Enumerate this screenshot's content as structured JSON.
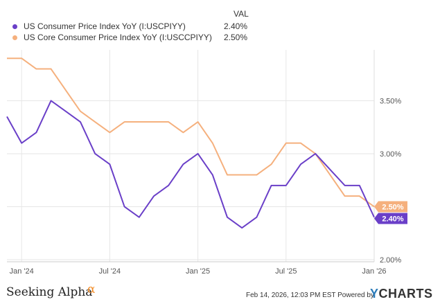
{
  "legend": {
    "val_header": "VAL",
    "items": [
      {
        "name": "US Consumer Price Index YoY (I:USCPIYY)",
        "value": "2.40%",
        "color": "#6a3fc8"
      },
      {
        "name": "US Core Consumer Price Index YoY (I:USCCPIYY)",
        "value": "2.50%",
        "color": "#f5b07d"
      }
    ]
  },
  "chart_data": {
    "type": "line",
    "x": [
      "2023-12",
      "2024-01",
      "2024-02",
      "2024-03",
      "2024-04",
      "2024-05",
      "2024-06",
      "2024-07",
      "2024-08",
      "2024-09",
      "2024-10",
      "2024-11",
      "2024-12",
      "2025-01",
      "2025-02",
      "2025-03",
      "2025-04",
      "2025-05",
      "2025-06",
      "2025-07",
      "2025-08",
      "2025-09",
      "2025-10",
      "2025-11",
      "2025-12",
      "2026-01"
    ],
    "series": [
      {
        "name": "US Consumer Price Index YoY (I:USCPIYY)",
        "color": "#6a3fc8",
        "values": [
          3.35,
          3.1,
          3.2,
          3.5,
          3.4,
          3.3,
          3.0,
          2.9,
          2.5,
          2.4,
          2.6,
          2.7,
          2.9,
          3.0,
          2.8,
          2.4,
          2.3,
          2.4,
          2.7,
          2.7,
          2.9,
          3.0,
          null,
          2.7,
          2.7,
          2.4
        ],
        "last_label": "2.40%"
      },
      {
        "name": "US Core Consumer Price Index YoY (I:USCCPIYY)",
        "color": "#f5b07d",
        "values": [
          3.9,
          3.9,
          3.8,
          3.8,
          3.6,
          3.4,
          3.3,
          3.2,
          3.3,
          3.3,
          3.3,
          3.3,
          3.2,
          3.3,
          3.1,
          2.8,
          2.8,
          2.8,
          2.9,
          3.1,
          3.1,
          3.0,
          null,
          2.6,
          2.6,
          2.5
        ],
        "last_label": "2.50%"
      }
    ],
    "ylim": [
      1.98,
      3.98
    ],
    "y_ticks": [
      {
        "value": 2.0,
        "label": "2.00%"
      },
      {
        "value": 2.5,
        "label": "2.50%"
      },
      {
        "value": 3.0,
        "label": "3.00%"
      },
      {
        "value": 3.5,
        "label": "3.50%"
      }
    ],
    "x_ticks": [
      {
        "label": "Jan '24",
        "month": 1
      },
      {
        "label": "Jul '24",
        "month": 7
      },
      {
        "label": "Jan '25",
        "month": 13
      },
      {
        "label": "Jul '25",
        "month": 19
      },
      {
        "label": "Jan '26",
        "month": 25
      }
    ],
    "grid": true
  },
  "footer": {
    "brand": "Seeking Alpha",
    "brand_symbol": "α",
    "timestamp": "Feb 14, 2026, 12:03 PM EST",
    "powered": "Powered by",
    "ycharts_y": "Y",
    "ycharts_rest": "CHARTS"
  }
}
